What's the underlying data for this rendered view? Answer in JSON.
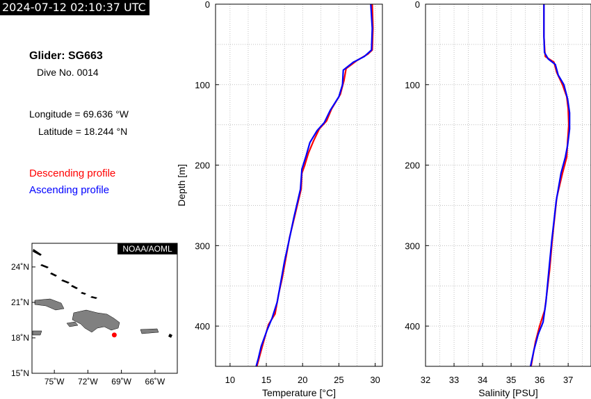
{
  "header": {
    "timestamp": "2024-07-12 02:10:37 UTC"
  },
  "info": {
    "glider": "Glider: SG663",
    "dive": "Dive No. 0014",
    "longitude": "Longitude = 69.636 °W",
    "latitude": "Latitude = 18.244 °N"
  },
  "legend": {
    "descending": "Descending profile",
    "ascending": "Ascending profile"
  },
  "colors": {
    "descending": "#ff0000",
    "ascending": "#0000ff",
    "land": "#808080",
    "grid": "#999999"
  },
  "map": {
    "badge": "NOAA/AOML",
    "lon_ticks": [
      "75˚W",
      "72˚W",
      "69˚W",
      "66˚W"
    ],
    "lat_ticks": [
      "24˚N",
      "21˚N",
      "18˚N",
      "15˚N"
    ],
    "lon_range": [
      -77,
      -64
    ],
    "lat_range": [
      15,
      26
    ],
    "glider_position": {
      "lon": -69.636,
      "lat": 18.244
    }
  },
  "chart_data": [
    {
      "type": "line",
      "xlabel": "Temperature [°C]",
      "ylabel": "Depth [m]",
      "xlim": [
        8,
        31
      ],
      "ylim": [
        0,
        450
      ],
      "y_inverted": true,
      "xticks": [
        10,
        15,
        20,
        25,
        30
      ],
      "yticks": [
        0,
        100,
        200,
        300,
        400
      ],
      "series": [
        {
          "name": "Descending profile",
          "color": "#ff0000",
          "points": [
            [
              29.6,
              0
            ],
            [
              29.7,
              30
            ],
            [
              29.6,
              57
            ],
            [
              29.0,
              62
            ],
            [
              27.5,
              70
            ],
            [
              26.0,
              80
            ],
            [
              25.7,
              95
            ],
            [
              25.2,
              112
            ],
            [
              24.0,
              130
            ],
            [
              23.3,
              145
            ],
            [
              22.3,
              155
            ],
            [
              21.5,
              170
            ],
            [
              20.8,
              185
            ],
            [
              20.3,
              200
            ],
            [
              19.9,
              210
            ],
            [
              19.8,
              230
            ],
            [
              19.0,
              260
            ],
            [
              18.2,
              290
            ],
            [
              17.8,
              310
            ],
            [
              17.2,
              340
            ],
            [
              16.7,
              360
            ],
            [
              16.2,
              385
            ],
            [
              15.3,
              398
            ],
            [
              14.6,
              420
            ],
            [
              14.0,
              440
            ],
            [
              13.7,
              450
            ]
          ]
        },
        {
          "name": "Ascending profile",
          "color": "#0000ff",
          "points": [
            [
              29.4,
              0
            ],
            [
              29.6,
              30
            ],
            [
              29.5,
              57
            ],
            [
              28.5,
              65
            ],
            [
              27.0,
              72
            ],
            [
              25.6,
              82
            ],
            [
              25.5,
              100
            ],
            [
              25.0,
              115
            ],
            [
              23.8,
              132
            ],
            [
              23.0,
              147
            ],
            [
              22.0,
              157
            ],
            [
              21.0,
              172
            ],
            [
              20.5,
              188
            ],
            [
              19.9,
              205
            ],
            [
              19.7,
              230
            ],
            [
              18.8,
              265
            ],
            [
              18.1,
              295
            ],
            [
              17.5,
              320
            ],
            [
              16.9,
              350
            ],
            [
              16.5,
              370
            ],
            [
              15.8,
              390
            ],
            [
              15.1,
              405
            ],
            [
              14.3,
              425
            ],
            [
              13.9,
              440
            ],
            [
              13.6,
              450
            ]
          ]
        }
      ]
    },
    {
      "type": "line",
      "xlabel": "Salinity [PSU]",
      "ylabel": "",
      "xlim": [
        32,
        37.8
      ],
      "ylim": [
        0,
        450
      ],
      "y_inverted": true,
      "xticks": [
        32,
        33,
        34,
        35,
        36,
        37
      ],
      "yticks": [
        0,
        100,
        200,
        300,
        400
      ],
      "series": [
        {
          "name": "Descending profile",
          "color": "#ff0000",
          "points": [
            [
              36.15,
              0
            ],
            [
              36.15,
              40
            ],
            [
              36.18,
              58
            ],
            [
              36.2,
              65
            ],
            [
              36.5,
              72
            ],
            [
              36.6,
              85
            ],
            [
              36.8,
              100
            ],
            [
              36.95,
              115
            ],
            [
              37.0,
              130
            ],
            [
              37.02,
              150
            ],
            [
              36.98,
              170
            ],
            [
              36.95,
              190
            ],
            [
              36.8,
              210
            ],
            [
              36.6,
              240
            ],
            [
              36.45,
              290
            ],
            [
              36.35,
              330
            ],
            [
              36.25,
              360
            ],
            [
              36.18,
              380
            ],
            [
              36.0,
              400
            ],
            [
              35.85,
              420
            ],
            [
              35.7,
              450
            ]
          ]
        },
        {
          "name": "Ascending profile",
          "color": "#0000ff",
          "points": [
            [
              36.15,
              0
            ],
            [
              36.15,
              40
            ],
            [
              36.17,
              60
            ],
            [
              36.3,
              68
            ],
            [
              36.55,
              75
            ],
            [
              36.65,
              88
            ],
            [
              36.85,
              100
            ],
            [
              36.98,
              118
            ],
            [
              37.05,
              135
            ],
            [
              37.05,
              155
            ],
            [
              36.98,
              175
            ],
            [
              36.9,
              190
            ],
            [
              36.75,
              210
            ],
            [
              36.58,
              245
            ],
            [
              36.42,
              295
            ],
            [
              36.3,
              340
            ],
            [
              36.22,
              370
            ],
            [
              36.12,
              395
            ],
            [
              35.95,
              410
            ],
            [
              35.8,
              430
            ],
            [
              35.68,
              450
            ]
          ]
        }
      ]
    }
  ]
}
